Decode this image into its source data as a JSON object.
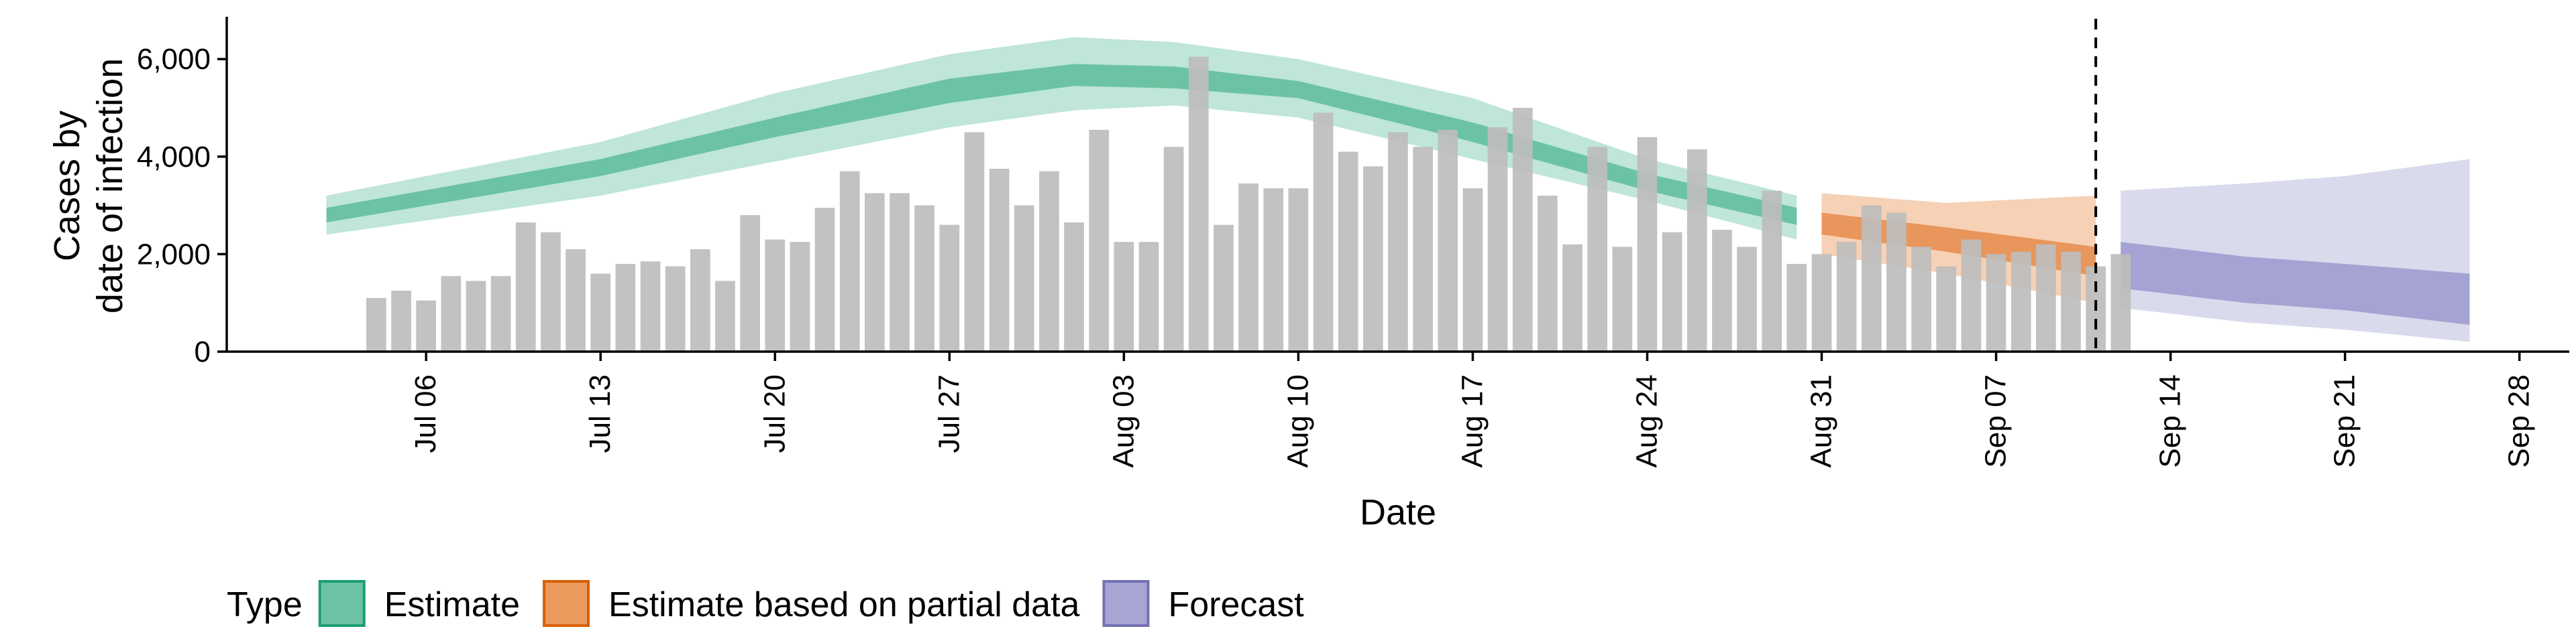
{
  "chart_data": {
    "type": "bar",
    "title": "",
    "xlabel": "Date",
    "ylabel_lines": [
      "Cases by",
      "date of infection"
    ],
    "ylim": [
      0,
      6800
    ],
    "yticks": [
      0,
      2000,
      4000,
      6000
    ],
    "ytick_labels": [
      "0",
      "2,000",
      "4,000",
      "6,000"
    ],
    "x_range": [
      "2020-06-28",
      "2020-09-30"
    ],
    "xticks": [
      "2020-07-06",
      "2020-07-13",
      "2020-07-20",
      "2020-07-27",
      "2020-08-03",
      "2020-08-10",
      "2020-08-17",
      "2020-08-24",
      "2020-08-31",
      "2020-09-07",
      "2020-09-14",
      "2020-09-21",
      "2020-09-28"
    ],
    "xtick_labels": [
      "Jul 06",
      "Jul 13",
      "Jul 20",
      "Jul 27",
      "Aug 03",
      "Aug 10",
      "Aug 17",
      "Aug 24",
      "Aug 31",
      "Sep 07",
      "Sep 14",
      "Sep 21",
      "Sep 28"
    ],
    "bar_start_date": "2020-07-04",
    "bar_color": "#bdbdbd",
    "cases": [
      1100,
      1250,
      1050,
      1550,
      1450,
      1550,
      2650,
      2450,
      2100,
      1600,
      1800,
      1850,
      1750,
      2100,
      1450,
      2800,
      2300,
      2250,
      2950,
      3700,
      3250,
      3250,
      3000,
      2600,
      4500,
      3750,
      3000,
      3700,
      2650,
      4550,
      2250,
      2250,
      4200,
      6050,
      2600,
      3450,
      3350,
      3350,
      4900,
      4100,
      3800,
      4500,
      4200,
      4550,
      3350,
      4600,
      5000,
      3200,
      2200,
      4200,
      2150,
      4400,
      2450,
      4150,
      2500,
      2150,
      3300,
      1800,
      2000,
      2250,
      3000,
      2850,
      2150,
      1750,
      2300,
      2000,
      2050,
      2200,
      2050,
      1750,
      2000
    ],
    "vline_date": "2020-09-11",
    "series": [
      {
        "name": "Estimate",
        "color": "#66c2a5",
        "fill_outer": "#bfe6d8",
        "fill_inner": "#6cc3a3",
        "start_date": "2020-07-02",
        "end_date": "2020-08-30",
        "knots": [
          {
            "date": "2020-07-02",
            "lo90": 2400,
            "lo50": 2650,
            "hi50": 2950,
            "hi90": 3200
          },
          {
            "date": "2020-07-13",
            "lo90": 3200,
            "lo50": 3600,
            "hi50": 3950,
            "hi90": 4300
          },
          {
            "date": "2020-07-20",
            "lo90": 3900,
            "lo50": 4400,
            "hi50": 4800,
            "hi90": 5300
          },
          {
            "date": "2020-07-27",
            "lo90": 4600,
            "lo50": 5100,
            "hi50": 5600,
            "hi90": 6100
          },
          {
            "date": "2020-08-01",
            "lo90": 4950,
            "lo50": 5450,
            "hi50": 5900,
            "hi90": 6450
          },
          {
            "date": "2020-08-05",
            "lo90": 5050,
            "lo50": 5400,
            "hi50": 5850,
            "hi90": 6350
          },
          {
            "date": "2020-08-10",
            "lo90": 4800,
            "lo50": 5200,
            "hi50": 5550,
            "hi90": 6000
          },
          {
            "date": "2020-08-17",
            "lo90": 3950,
            "lo50": 4300,
            "hi50": 4700,
            "hi90": 5200
          },
          {
            "date": "2020-08-24",
            "lo90": 3100,
            "lo50": 3300,
            "hi50": 3650,
            "hi90": 3950
          },
          {
            "date": "2020-08-30",
            "lo90": 2300,
            "lo50": 2600,
            "hi50": 2950,
            "hi90": 3200
          }
        ]
      },
      {
        "name": "Estimate based on partial data",
        "color": "#fc8d62",
        "fill_outer": "#f6d1b6",
        "fill_inner": "#e8965c",
        "start_date": "2020-08-31",
        "end_date": "2020-09-11",
        "knots": [
          {
            "date": "2020-08-31",
            "lo90": 2000,
            "lo50": 2400,
            "hi50": 2850,
            "hi90": 3250
          },
          {
            "date": "2020-09-05",
            "lo90": 1600,
            "lo50": 2050,
            "hi50": 2550,
            "hi90": 3050
          },
          {
            "date": "2020-09-11",
            "lo90": 1000,
            "lo50": 1550,
            "hi50": 2150,
            "hi90": 3200
          }
        ]
      },
      {
        "name": "Forecast",
        "color": "#8da0cb",
        "fill_outer": "#d9daec",
        "fill_inner": "#a5a3d3",
        "start_date": "2020-09-12",
        "end_date": "2020-09-26",
        "knots": [
          {
            "date": "2020-09-12",
            "lo90": 900,
            "lo50": 1300,
            "hi50": 2250,
            "hi90": 3300
          },
          {
            "date": "2020-09-17",
            "lo90": 600,
            "lo50": 1000,
            "hi50": 1950,
            "hi90": 3450
          },
          {
            "date": "2020-09-21",
            "lo90": 450,
            "lo50": 850,
            "hi50": 1800,
            "hi90": 3600
          },
          {
            "date": "2020-09-26",
            "lo90": 200,
            "lo50": 550,
            "hi50": 1600,
            "hi90": 3950
          }
        ]
      }
    ],
    "legend": {
      "position": "bottom",
      "title": "Type",
      "items": [
        {
          "label": "Estimate",
          "fill": "#6cc3a3",
          "stroke": "#1b9e77"
        },
        {
          "label": "Estimate based on partial data",
          "fill": "#eb9a5e",
          "stroke": "#d95f02"
        },
        {
          "label": "Forecast",
          "fill": "#a8a5d4",
          "stroke": "#7570b3"
        }
      ]
    }
  }
}
